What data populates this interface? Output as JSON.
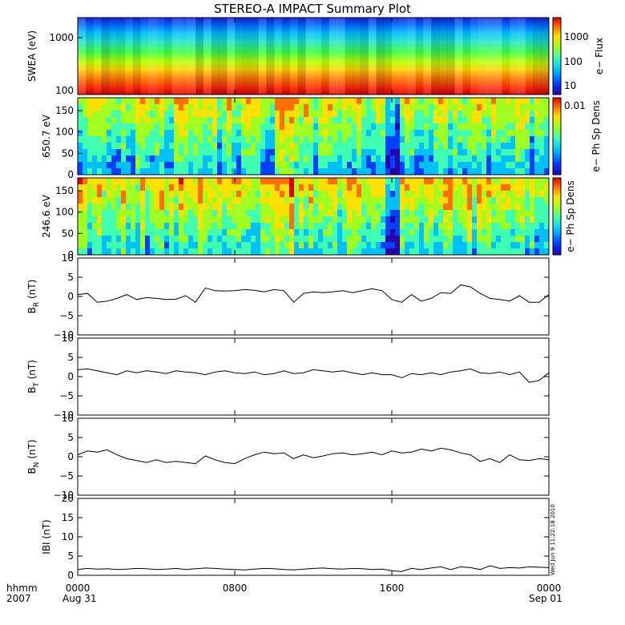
{
  "title": "STEREO-A IMPACT Summary Plot",
  "timestamp": "Wed Jun 9 11:22:18 2010",
  "footer": {
    "left_top": "hhmm",
    "left_bottom": "2007",
    "start_date": "Aug 31",
    "end_date": "Sep 01"
  },
  "x_axis": {
    "ticks": [
      {
        "value": 0,
        "label": "0000"
      },
      {
        "value": 8,
        "label": "0800"
      },
      {
        "value": 16,
        "label": "1600"
      },
      {
        "value": 24,
        "label": "0000"
      }
    ],
    "range_hours": [
      0,
      24
    ]
  },
  "colors": {
    "axis": "#000000",
    "line": "#000000",
    "colormap": [
      "#2a00b0",
      "#0040ff",
      "#00c0ff",
      "#40ffb0",
      "#a0ff20",
      "#ffe000",
      "#ff7000",
      "#e00000"
    ]
  },
  "panels": {
    "swea": {
      "ylabel": "SWEA (eV)",
      "ticks": [
        "100",
        "1000"
      ],
      "colorbar_ticks": [
        "10",
        "100",
        "1000"
      ],
      "colorbar_label": "e− Flux"
    },
    "pad650": {
      "ylabel": "650.7 eV",
      "ticks": [
        "0",
        "50",
        "100",
        "150"
      ],
      "colorbar_ticks": [
        "0.01"
      ],
      "colorbar_label": "e− Ph Sp Dens"
    },
    "pad246": {
      "ylabel": "246.6 eV",
      "ticks": [
        "0",
        "50",
        "100",
        "150"
      ],
      "colorbar_label": "e− Ph Sp Dens"
    },
    "br": {
      "ylabel_main": "B",
      "ylabel_sub": "R",
      "ylabel_unit": " (nT)",
      "ticks": [
        "−10",
        "−5",
        "0",
        "5",
        "10"
      ]
    },
    "bt": {
      "ylabel_main": "B",
      "ylabel_sub": "T",
      "ylabel_unit": " (nT)",
      "ticks": [
        "−10",
        "−5",
        "0",
        "5",
        "10"
      ]
    },
    "bn": {
      "ylabel_main": "B",
      "ylabel_sub": "N",
      "ylabel_unit": " (nT)",
      "ticks": [
        "−10",
        "−5",
        "0",
        "5",
        "10"
      ]
    },
    "bmag": {
      "ylabel": "IBI (nT)",
      "ticks": [
        "0",
        "5",
        "10",
        "15",
        "20"
      ]
    }
  },
  "chart_data": [
    {
      "type": "heatmap",
      "title": "STEREO-A IMPACT Summary Plot",
      "ylabel": "SWEA (eV)",
      "y_scale": "log",
      "ylim": [
        100,
        2000
      ],
      "colorbar": {
        "label": "e− Flux",
        "scale": "log",
        "range": [
          5,
          5000
        ]
      },
      "description_levels": {
        "energy_eV": [
          100,
          200,
          400,
          700,
          1000,
          1500,
          2000
        ],
        "flux": [
          5000,
          3000,
          800,
          150,
          40,
          10,
          5
        ]
      }
    },
    {
      "type": "heatmap",
      "ylabel": "650.7 eV",
      "ylim": [
        0,
        180
      ],
      "colorbar": {
        "label": "e− Ph Sp Dens",
        "ticks": [
          "0.01"
        ]
      }
    },
    {
      "type": "heatmap",
      "ylabel": "246.6 eV",
      "ylim": [
        0,
        180
      ],
      "colorbar": {
        "label": "e− Ph Sp Dens"
      }
    },
    {
      "type": "line",
      "ylabel": "B_R (nT)",
      "ylim": [
        -10,
        10
      ],
      "x": [
        0,
        0.5,
        1,
        1.5,
        2,
        2.5,
        3,
        3.5,
        4,
        4.5,
        5,
        5.5,
        6,
        6.5,
        7,
        7.5,
        8,
        8.5,
        9,
        9.5,
        10,
        10.5,
        11,
        11.5,
        12,
        12.5,
        13,
        13.5,
        14,
        14.5,
        15,
        15.5,
        16,
        16.5,
        17,
        17.5,
        18,
        18.5,
        19,
        19.5,
        20,
        20.5,
        21,
        21.5,
        22,
        22.5,
        23,
        23.5,
        24
      ],
      "values": [
        0.5,
        0.8,
        -1.5,
        -1.2,
        -0.5,
        0.5,
        -0.8,
        -0.3,
        -0.5,
        -0.8,
        -0.7,
        0.2,
        -1.5,
        2.2,
        1.5,
        1.4,
        1.5,
        1.8,
        1.6,
        1.2,
        1.8,
        1.5,
        -1.5,
        0.8,
        1.2,
        1.0,
        1.2,
        1.5,
        1.0,
        1.5,
        2.0,
        1.5,
        -0.8,
        -1.5,
        0.5,
        -1.2,
        -0.5,
        1.0,
        0.8,
        3.0,
        2.5,
        0.8,
        -0.5,
        -0.8,
        -1.2,
        0.2,
        -1.5,
        -1.5,
        0.5
      ]
    },
    {
      "type": "line",
      "ylabel": "B_T (nT)",
      "ylim": [
        -10,
        10
      ],
      "x": [
        0,
        0.5,
        1,
        1.5,
        2,
        2.5,
        3,
        3.5,
        4,
        4.5,
        5,
        5.5,
        6,
        6.5,
        7,
        7.5,
        8,
        8.5,
        9,
        9.5,
        10,
        10.5,
        11,
        11.5,
        12,
        12.5,
        13,
        13.5,
        14,
        14.5,
        15,
        15.5,
        16,
        16.5,
        17,
        17.5,
        18,
        18.5,
        19,
        19.5,
        20,
        20.5,
        21,
        21.5,
        22,
        22.5,
        23,
        23.5,
        24
      ],
      "values": [
        1.8,
        2.0,
        1.5,
        1.0,
        0.5,
        1.5,
        1.0,
        1.5,
        1.2,
        0.8,
        1.5,
        1.2,
        1.0,
        0.5,
        1.2,
        1.5,
        1.0,
        0.8,
        1.2,
        0.5,
        0.8,
        1.5,
        0.8,
        1.0,
        1.8,
        1.5,
        1.2,
        1.5,
        1.0,
        0.5,
        1.0,
        0.5,
        0.5,
        -0.3,
        0.8,
        0.5,
        1.0,
        0.5,
        1.2,
        1.5,
        2.0,
        1.0,
        0.8,
        1.2,
        0.5,
        1.2,
        -1.5,
        -1.0,
        1.0
      ]
    },
    {
      "type": "line",
      "ylabel": "B_N (nT)",
      "ylim": [
        -10,
        10
      ],
      "x": [
        0,
        0.5,
        1,
        1.5,
        2,
        2.5,
        3,
        3.5,
        4,
        4.5,
        5,
        5.5,
        6,
        6.5,
        7,
        7.5,
        8,
        8.5,
        9,
        9.5,
        10,
        10.5,
        11,
        11.5,
        12,
        12.5,
        13,
        13.5,
        14,
        14.5,
        15,
        15.5,
        16,
        16.5,
        17,
        17.5,
        18,
        18.5,
        19,
        19.5,
        20,
        20.5,
        21,
        21.5,
        22,
        22.5,
        23,
        23.5,
        24
      ],
      "values": [
        0.5,
        1.5,
        1.2,
        1.8,
        0.5,
        -0.5,
        -1.0,
        -1.5,
        -0.8,
        -1.5,
        -1.2,
        -1.5,
        -1.8,
        0.2,
        -0.8,
        -1.5,
        -1.8,
        -0.5,
        0.5,
        1.2,
        0.8,
        1.0,
        -0.5,
        0.5,
        -0.3,
        0.2,
        0.8,
        1.0,
        0.5,
        0.8,
        1.2,
        0.5,
        1.5,
        1.0,
        1.2,
        2.0,
        1.5,
        2.2,
        1.8,
        1.0,
        0.5,
        -1.2,
        -0.5,
        -1.5,
        0.5,
        -0.8,
        -1.0,
        -0.5,
        -0.8
      ]
    },
    {
      "type": "line",
      "ylabel": "IBI (nT)",
      "ylim": [
        0,
        20
      ],
      "x": [
        0,
        0.5,
        1,
        1.5,
        2,
        2.5,
        3,
        3.5,
        4,
        4.5,
        5,
        5.5,
        6,
        6.5,
        7,
        7.5,
        8,
        8.5,
        9,
        9.5,
        10,
        10.5,
        11,
        11.5,
        12,
        12.5,
        13,
        13.5,
        14,
        14.5,
        15,
        15.5,
        16,
        16.5,
        17,
        17.5,
        18,
        18.5,
        19,
        19.5,
        20,
        20.5,
        21,
        21.5,
        22,
        22.5,
        23,
        23.5,
        24
      ],
      "values": [
        1.5,
        1.8,
        1.6,
        1.7,
        1.5,
        1.6,
        1.8,
        1.7,
        1.5,
        1.6,
        1.8,
        1.5,
        1.7,
        1.9,
        1.8,
        1.6,
        1.5,
        1.4,
        1.6,
        1.8,
        1.7,
        1.5,
        1.4,
        1.6,
        1.8,
        1.9,
        1.7,
        1.6,
        1.8,
        1.7,
        1.5,
        1.6,
        1.2,
        1.0,
        1.8,
        1.5,
        1.9,
        2.2,
        1.5,
        2.2,
        2.0,
        1.5,
        2.5,
        1.8,
        2.0,
        1.9,
        2.2,
        2.1,
        2.0
      ]
    }
  ]
}
